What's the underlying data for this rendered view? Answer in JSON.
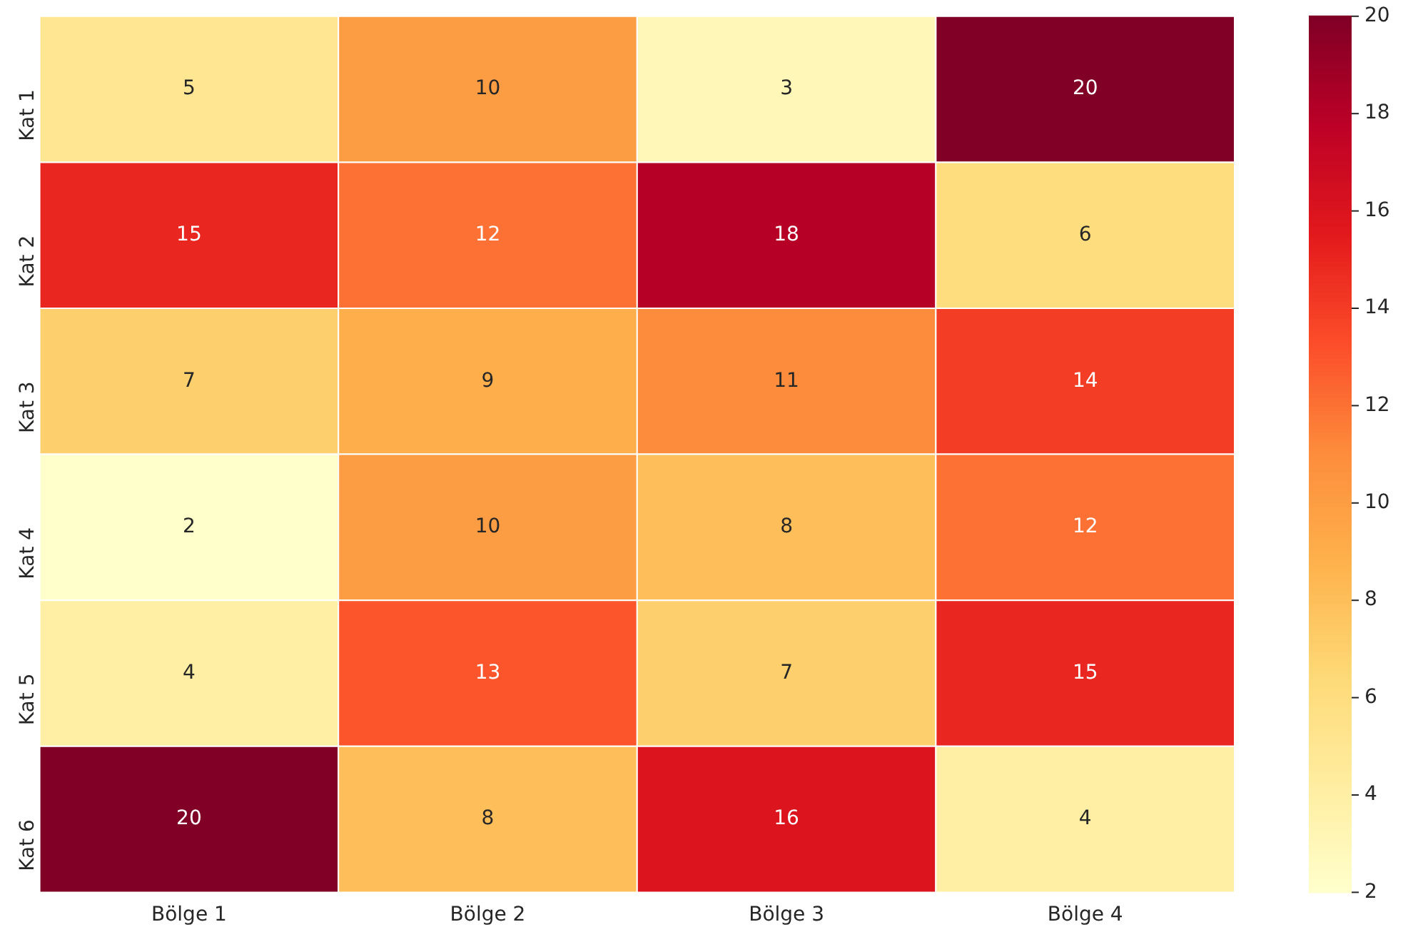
{
  "chart_data": {
    "type": "heatmap",
    "categories": [
      "Bölge 1",
      "Bölge 2",
      "Bölge 3",
      "Bölge 4"
    ],
    "y_categories": [
      "Kat 1",
      "Kat 2",
      "Kat 3",
      "Kat 4",
      "Kat 5",
      "Kat 6"
    ],
    "cells": [
      [
        5,
        10,
        3,
        20
      ],
      [
        15,
        12,
        18,
        6
      ],
      [
        7,
        9,
        11,
        14
      ],
      [
        2,
        10,
        8,
        12
      ],
      [
        4,
        13,
        7,
        15
      ],
      [
        20,
        8,
        16,
        4
      ]
    ],
    "data_labels": true,
    "clim": [
      2,
      20
    ],
    "cticks": [
      2,
      4,
      6,
      8,
      10,
      12,
      14,
      16,
      18,
      20
    ]
  }
}
